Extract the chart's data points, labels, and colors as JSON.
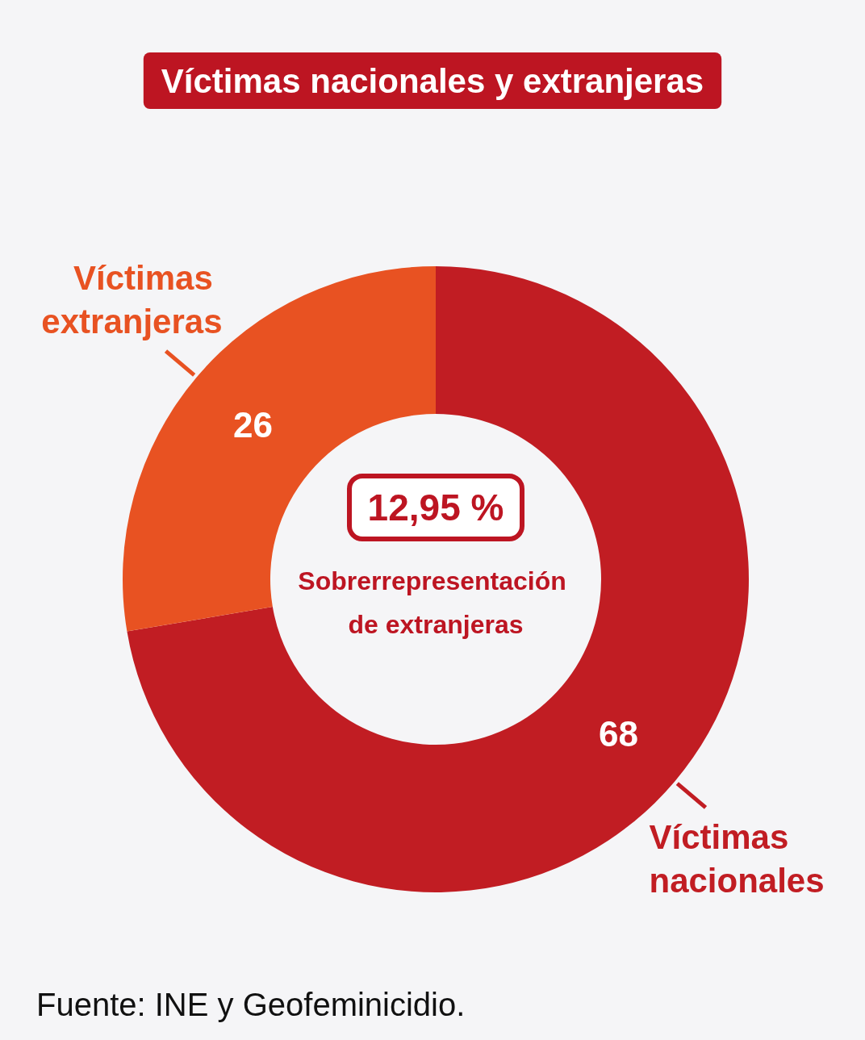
{
  "chart_data": {
    "type": "donut",
    "title": "Víctimas nacionales y extranjeras",
    "categories": [
      "Víctimas nacionales",
      "Víctimas extranjeras"
    ],
    "values": [
      68,
      26
    ],
    "colors": [
      "#c11d23",
      "#e85222"
    ],
    "data_labels": true,
    "legend": false,
    "annotations": [
      "12,95 %",
      "Sobrerrepresentación de extranjeras",
      "Fuente: INE y Geofeminicidio."
    ]
  }
}
